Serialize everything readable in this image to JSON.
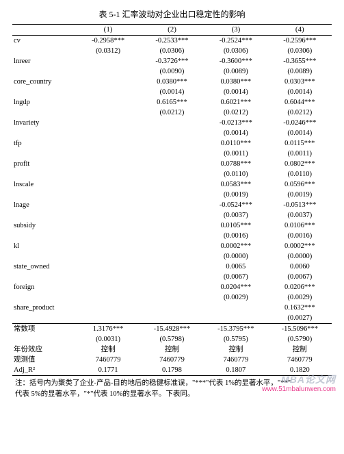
{
  "title": "表 5-1 汇率波动对企业出口稳定性的影响",
  "headers": [
    "",
    "(1)",
    "(2)",
    "(3)",
    "(4)"
  ],
  "rows": [
    {
      "label": "cv",
      "c1": "-0.2958***",
      "c2": "-0.2533***",
      "c3": "-0.2524***",
      "c4": "-0.2596***"
    },
    {
      "label": "",
      "c1": "(0.0312)",
      "c2": "(0.0306)",
      "c3": "(0.0306)",
      "c4": "(0.0306)"
    },
    {
      "label": "lnreer",
      "c1": "",
      "c2": "-0.3726***",
      "c3": "-0.3600***",
      "c4": "-0.3655***"
    },
    {
      "label": "",
      "c1": "",
      "c2": "(0.0090)",
      "c3": "(0.0089)",
      "c4": "(0.0089)"
    },
    {
      "label": "core_country",
      "c1": "",
      "c2": "0.0380***",
      "c3": "0.0380***",
      "c4": "0.0303***"
    },
    {
      "label": "",
      "c1": "",
      "c2": "(0.0014)",
      "c3": "(0.0014)",
      "c4": "(0.0014)"
    },
    {
      "label": "lngdp",
      "c1": "",
      "c2": "0.6165***",
      "c3": "0.6021***",
      "c4": "0.6044***"
    },
    {
      "label": "",
      "c1": "",
      "c2": "(0.0212)",
      "c3": "(0.0212)",
      "c4": "(0.0212)"
    },
    {
      "label": "lnvariety",
      "c1": "",
      "c2": "",
      "c3": "-0.0213***",
      "c4": "-0.0246***"
    },
    {
      "label": "",
      "c1": "",
      "c2": "",
      "c3": "(0.0014)",
      "c4": "(0.0014)"
    },
    {
      "label": "tfp",
      "c1": "",
      "c2": "",
      "c3": "0.0110***",
      "c4": "0.0115***"
    },
    {
      "label": "",
      "c1": "",
      "c2": "",
      "c3": "(0.0011)",
      "c4": "(0.0011)"
    },
    {
      "label": "profit",
      "c1": "",
      "c2": "",
      "c3": "0.0788***",
      "c4": "0.0802***"
    },
    {
      "label": "",
      "c1": "",
      "c2": "",
      "c3": "(0.0110)",
      "c4": "(0.0110)"
    },
    {
      "label": "lnscale",
      "c1": "",
      "c2": "",
      "c3": "0.0583***",
      "c4": "0.0596***"
    },
    {
      "label": "",
      "c1": "",
      "c2": "",
      "c3": "(0.0019)",
      "c4": "(0.0019)"
    },
    {
      "label": "lnage",
      "c1": "",
      "c2": "",
      "c3": "-0.0524***",
      "c4": "-0.0513***"
    },
    {
      "label": "",
      "c1": "",
      "c2": "",
      "c3": "(0.0037)",
      "c4": "(0.0037)"
    },
    {
      "label": "subsidy",
      "c1": "",
      "c2": "",
      "c3": "0.0105***",
      "c4": "0.0106***"
    },
    {
      "label": "",
      "c1": "",
      "c2": "",
      "c3": "(0.0016)",
      "c4": "(0.0016)"
    },
    {
      "label": "kl",
      "c1": "",
      "c2": "",
      "c3": "0.0002***",
      "c4": "0.0002***"
    },
    {
      "label": "",
      "c1": "",
      "c2": "",
      "c3": "(0.0000)",
      "c4": "(0.0000)"
    },
    {
      "label": "state_owned",
      "c1": "",
      "c2": "",
      "c3": "0.0065",
      "c4": "0.0060"
    },
    {
      "label": "",
      "c1": "",
      "c2": "",
      "c3": "(0.0067)",
      "c4": "(0.0067)"
    },
    {
      "label": "foreign",
      "c1": "",
      "c2": "",
      "c3": "0.0204***",
      "c4": "0.0206***"
    },
    {
      "label": "",
      "c1": "",
      "c2": "",
      "c3": "(0.0029)",
      "c4": "(0.0029)"
    },
    {
      "label": "share_product",
      "c1": "",
      "c2": "",
      "c3": "",
      "c4": "0.1632***"
    },
    {
      "label": "",
      "c1": "",
      "c2": "",
      "c3": "",
      "c4": "(0.0027)"
    },
    {
      "label": "常数项",
      "c1": "1.3176***",
      "c2": "-15.4928***",
      "c3": "-15.3795***",
      "c4": "-15.5096***",
      "rule": "top"
    },
    {
      "label": "",
      "c1": "(0.0031)",
      "c2": "(0.5798)",
      "c3": "(0.5795)",
      "c4": "(0.5790)"
    },
    {
      "label": "年份效应",
      "c1": "控制",
      "c2": "控制",
      "c3": "控制",
      "c4": "控制"
    },
    {
      "label": "观测值",
      "c1": "7460779",
      "c2": "7460779",
      "c3": "7460779",
      "c4": "7460779"
    },
    {
      "label": "Adj_R²",
      "c1": "0.1771",
      "c2": "0.1798",
      "c3": "0.1807",
      "c4": "0.1820",
      "rule": "bot"
    }
  ],
  "note_line1": "注：括号内为聚类了企业-产品-目的地后的稳健标准误，\"***\"代表 1%的显著水平，\"**\"",
  "note_line2": "代表 5%的显著水平，\"*\"代表 10%的显著水平。下表同。",
  "watermark1": "MBA论文网",
  "watermark2": "www.51mbalunwen.com",
  "col_widths": [
    "20%",
    "20%",
    "20%",
    "20%",
    "20%"
  ]
}
